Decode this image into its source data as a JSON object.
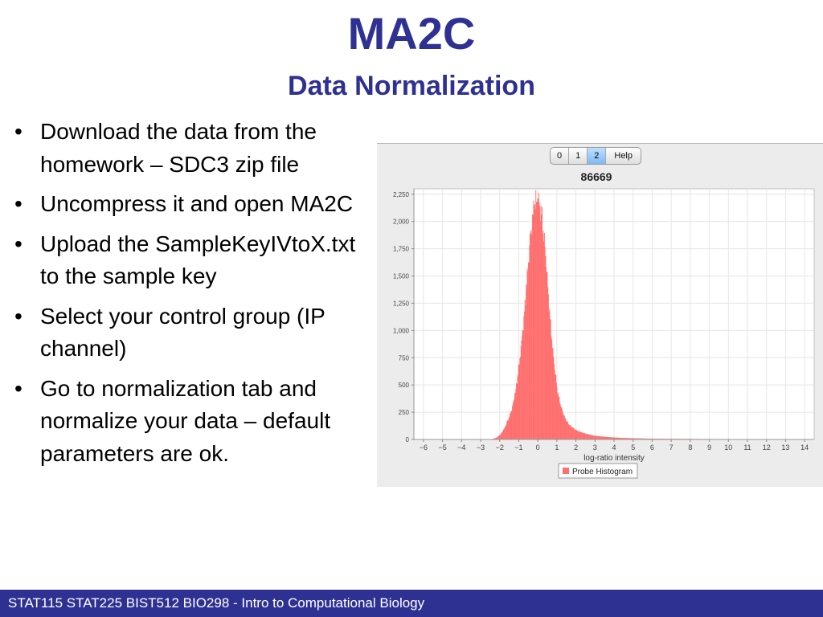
{
  "slide": {
    "title": "MA2C",
    "subtitle": "Data Normalization",
    "bullet_char": "•",
    "bullets": [
      "Download the data from the homework – SDC3 zip file",
      "Uncompress it and open MA2C",
      "Upload the SampleKeyIVtoX.txt to the sample key",
      "Select your control group (IP channel)",
      "Go to normalization tab and normalize your data – default parameters are ok."
    ],
    "footer": "STAT115 STAT225 BIST512 BIO298 - Intro to Computational Biology"
  },
  "app": {
    "tabs": [
      {
        "label": "0",
        "active": false
      },
      {
        "label": "1",
        "active": false
      },
      {
        "label": "2",
        "active": true
      },
      {
        "label": "Help",
        "active": false
      }
    ]
  },
  "colors": {
    "title": "#2e3192",
    "footer_bg": "#2e3192",
    "histogram_fill": "#ff6f6f",
    "window_bg": "#ececec"
  },
  "chart_data": {
    "type": "bar",
    "title": "86669",
    "xlabel": "log-ratio intensity",
    "ylabel": "",
    "xlim": [
      -6.5,
      14.5
    ],
    "ylim": [
      0,
      2300
    ],
    "xticks": [
      -6,
      -5,
      -4,
      -3,
      -2,
      -1,
      0,
      1,
      2,
      3,
      4,
      5,
      6,
      7,
      8,
      9,
      10,
      11,
      12,
      13,
      14
    ],
    "yticks": [
      0,
      250,
      500,
      750,
      1000,
      1250,
      1500,
      1750,
      2000,
      2250
    ],
    "ytick_labels": [
      "0",
      "250",
      "500",
      "750",
      "1,000",
      "1,250",
      "1,500",
      "1,750",
      "2,000",
      "2,250"
    ],
    "grid": true,
    "legend": {
      "position": "bottom",
      "entries": [
        "Probe Histogram"
      ]
    },
    "series": [
      {
        "name": "Probe Histogram",
        "x": [
          -2.4,
          -2.2,
          -2.0,
          -1.8,
          -1.6,
          -1.4,
          -1.2,
          -1.0,
          -0.8,
          -0.6,
          -0.4,
          -0.2,
          0.0,
          0.2,
          0.4,
          0.6,
          0.8,
          1.0,
          1.2,
          1.4,
          1.6,
          1.8,
          2.0,
          2.2,
          2.4,
          2.6,
          2.8,
          3.0,
          3.4,
          3.8,
          4.2,
          4.6,
          5.0,
          5.5,
          6.0,
          7.0,
          8.0,
          9.0,
          10.0,
          11.0,
          12.0,
          13.0,
          14.0
        ],
        "y": [
          5,
          15,
          40,
          90,
          170,
          260,
          420,
          680,
          1000,
          1420,
          1880,
          2150,
          2210,
          2050,
          1680,
          1170,
          760,
          460,
          300,
          200,
          140,
          110,
          85,
          70,
          58,
          48,
          40,
          33,
          26,
          20,
          16,
          13,
          11,
          9,
          7,
          6,
          5,
          4,
          4,
          3,
          2,
          2,
          2
        ]
      }
    ]
  }
}
